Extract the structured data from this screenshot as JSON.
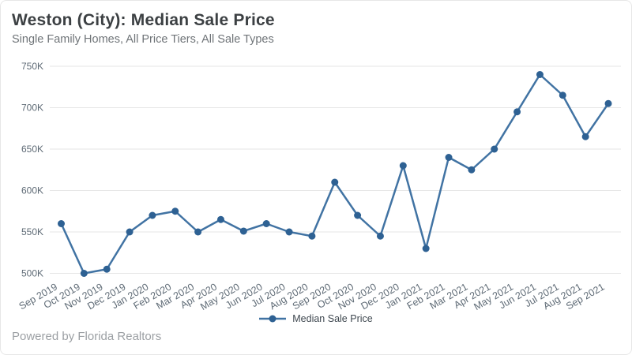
{
  "header": {
    "title": "Weston (City): Median Sale Price",
    "subtitle": "Single Family Homes, All Price Tiers, All Sale Types"
  },
  "legend": {
    "label": "Median Sale Price"
  },
  "footer": {
    "text": "Powered by Florida Realtors"
  },
  "colors": {
    "line": "#4173a3",
    "marker": "#2e6193",
    "grid": "#e6e6e6",
    "axis_label": "#5f6b76",
    "title": "#3c4043",
    "subtitle": "#6f7478",
    "legend_text": "#3f4850",
    "footer": "#9b9fa3",
    "background": "#ffffff"
  },
  "chart_data": {
    "type": "line",
    "title": "Weston (City): Median Sale Price",
    "subtitle": "Single Family Homes, All Price Tiers, All Sale Types",
    "categories": [
      "Sep 2019",
      "Oct 2019",
      "Nov 2019",
      "Dec 2019",
      "Jan 2020",
      "Feb 2020",
      "Mar 2020",
      "Apr 2020",
      "May 2020",
      "Jun 2020",
      "Jul 2020",
      "Aug 2020",
      "Sep 2020",
      "Oct 2020",
      "Nov 2020",
      "Dec 2020",
      "Jan 2021",
      "Feb 2021",
      "Mar 2021",
      "Apr 2021",
      "May 2021",
      "Jun 2021",
      "Jul 2021",
      "Aug 2021",
      "Sep 2021"
    ],
    "series": [
      {
        "name": "Median Sale Price",
        "unit": "USD thousands",
        "values": [
          560,
          500,
          505,
          550,
          570,
          575,
          550,
          565,
          551,
          560,
          550,
          545,
          610,
          570,
          545,
          630,
          530,
          640,
          625,
          650,
          695,
          740,
          715,
          665,
          705
        ]
      }
    ],
    "xlabel": "",
    "ylabel": "",
    "y_axis": {
      "tick_labels": [
        "500K",
        "550K",
        "600K",
        "650K",
        "700K",
        "750K"
      ],
      "tick_values": [
        500,
        550,
        600,
        650,
        700,
        750
      ],
      "range": [
        500,
        750
      ]
    },
    "grid": "horizontal-only",
    "marker": "circle",
    "legend_position": "bottom-center"
  }
}
